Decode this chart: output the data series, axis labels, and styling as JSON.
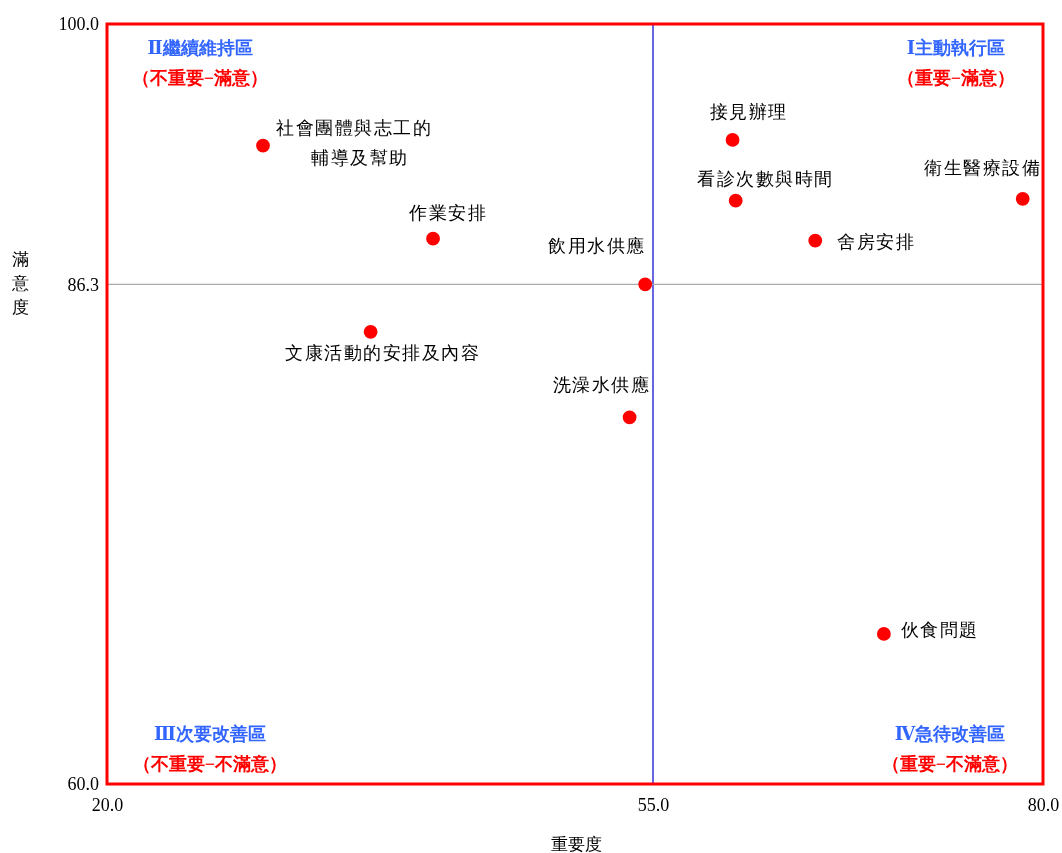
{
  "chart_data": {
    "type": "scatter",
    "xlabel": "重要度",
    "ylabel": "滿意度",
    "xlim": [
      20,
      80
    ],
    "ylim": [
      60,
      100
    ],
    "xticks": [
      {
        "value": 20,
        "label": "20.0"
      },
      {
        "value": 55,
        "label": "55.0"
      },
      {
        "value": 80,
        "label": "80.0"
      }
    ],
    "yticks": [
      {
        "value": 60,
        "label": "60.0"
      },
      {
        "value": 86.3,
        "label": "86.3"
      },
      {
        "value": 100,
        "label": "100.0"
      }
    ],
    "grid": false,
    "marker": "circle",
    "series": [
      {
        "color": "#ff0000",
        "x": [
          30.0,
          40.9,
          36.9,
          54.5,
          53.5,
          60.1,
          60.3,
          65.4,
          78.7,
          69.8
        ],
        "values": [
          93.6,
          88.7,
          83.8,
          86.3,
          79.3,
          93.9,
          90.7,
          88.6,
          90.8,
          67.9
        ]
      }
    ],
    "ref_lines": [
      {
        "axis": "x",
        "value": 55,
        "color": "#0000cc"
      },
      {
        "axis": "y",
        "value": 86.3,
        "color": "#aaaaaa"
      }
    ],
    "annotations": [
      {
        "text": "社會團體與志工的輔導及幫助",
        "x": 30.0,
        "y": 93.6
      },
      {
        "text": "作業安排",
        "x": 40.9,
        "y": 88.7
      },
      {
        "text": "文康活動的安排及內容",
        "x": 36.9,
        "y": 83.8
      },
      {
        "text": "飲用水供應",
        "x": 54.5,
        "y": 86.3
      },
      {
        "text": "洗澡水供應",
        "x": 53.5,
        "y": 79.3
      },
      {
        "text": "接見辦理",
        "x": 60.1,
        "y": 93.9
      },
      {
        "text": "看診次數與時間",
        "x": 60.3,
        "y": 90.7
      },
      {
        "text": "舍房安排",
        "x": 65.4,
        "y": 88.6
      },
      {
        "text": "衛生醫療設備",
        "x": 78.7,
        "y": 90.8
      },
      {
        "text": "伙食問題",
        "x": 69.8,
        "y": 67.9
      },
      "Ⅱ繼續維持區",
      "（不重要−滿意）",
      "Ⅰ主動執行區",
      "（重要−滿意）",
      "Ⅲ次要改善區",
      "（不重要−不滿意）",
      "Ⅳ急待改善區",
      "（重要−不滿意）"
    ]
  }
}
